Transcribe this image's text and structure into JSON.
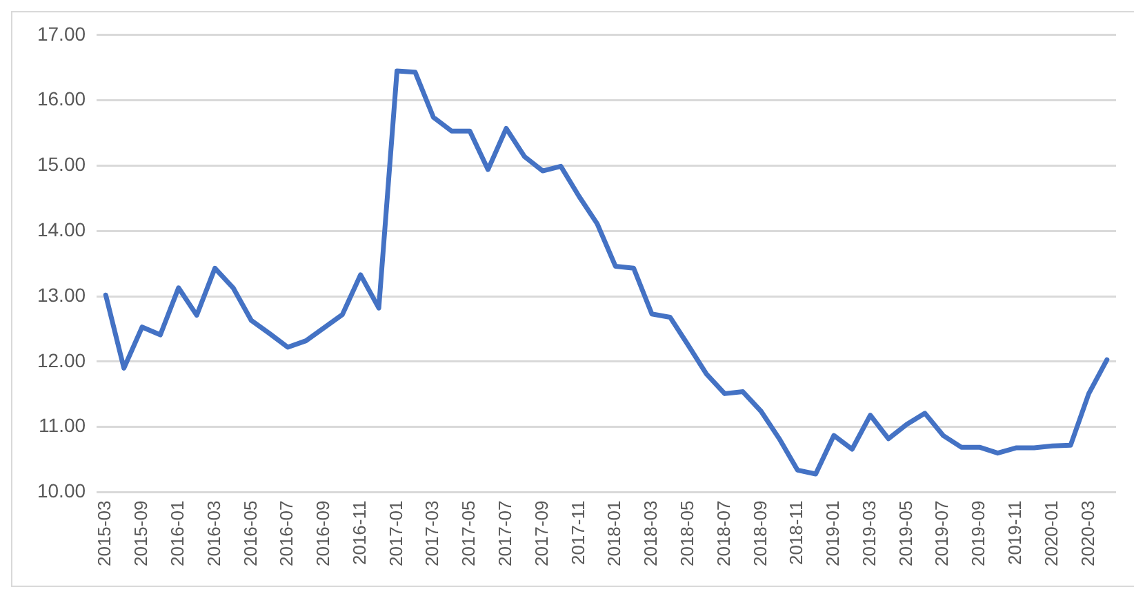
{
  "chart_data": {
    "type": "line",
    "categories": [
      "2015-03",
      null,
      "2015-09",
      null,
      "2016-01",
      null,
      "2016-03",
      null,
      "2016-05",
      null,
      "2016-07",
      null,
      "2016-09",
      null,
      "2016-11",
      null,
      "2017-01",
      null,
      "2017-03",
      null,
      "2017-05",
      null,
      "2017-07",
      null,
      "2017-09",
      null,
      "2017-11",
      null,
      "2018-01",
      null,
      "2018-03",
      null,
      "2018-05",
      null,
      "2018-07",
      null,
      "2018-09",
      null,
      "2018-11",
      null,
      "2019-01",
      null,
      "2019-03",
      null,
      "2019-05",
      null,
      "2019-07",
      null,
      "2019-09",
      null,
      "2019-11",
      null,
      "2020-01",
      null,
      "2020-03",
      null
    ],
    "series": [
      {
        "color": "#4472c4",
        "values": [
          13.02,
          11.9,
          12.53,
          12.41,
          13.13,
          12.71,
          13.43,
          13.13,
          12.63,
          12.43,
          12.22,
          12.32,
          12.52,
          12.72,
          13.33,
          12.82,
          16.45,
          16.43,
          15.74,
          15.53,
          15.53,
          14.94,
          15.57,
          15.14,
          14.92,
          14.99,
          14.53,
          14.11,
          13.46,
          13.43,
          12.73,
          12.68,
          12.25,
          11.81,
          11.51,
          11.54,
          11.24,
          10.82,
          10.34,
          10.28,
          10.87,
          10.66,
          11.18,
          10.82,
          11.04,
          11.21,
          10.87,
          10.69,
          10.69,
          10.6,
          10.68,
          10.68,
          10.71,
          10.72,
          11.51,
          12.03
        ]
      }
    ],
    "ylim": [
      10,
      17
    ],
    "yticks": [
      {
        "value": 10,
        "label": "10.00"
      },
      {
        "value": 11,
        "label": "11.00"
      },
      {
        "value": 12,
        "label": "12.00"
      },
      {
        "value": 13,
        "label": "13.00"
      },
      {
        "value": 14,
        "label": "14.00"
      },
      {
        "value": 15,
        "label": "15.00"
      },
      {
        "value": 16,
        "label": "16.00"
      },
      {
        "value": 17,
        "label": "17.00"
      }
    ],
    "grid": "y",
    "legend": false,
    "marker": "none",
    "line_style": "solid"
  }
}
